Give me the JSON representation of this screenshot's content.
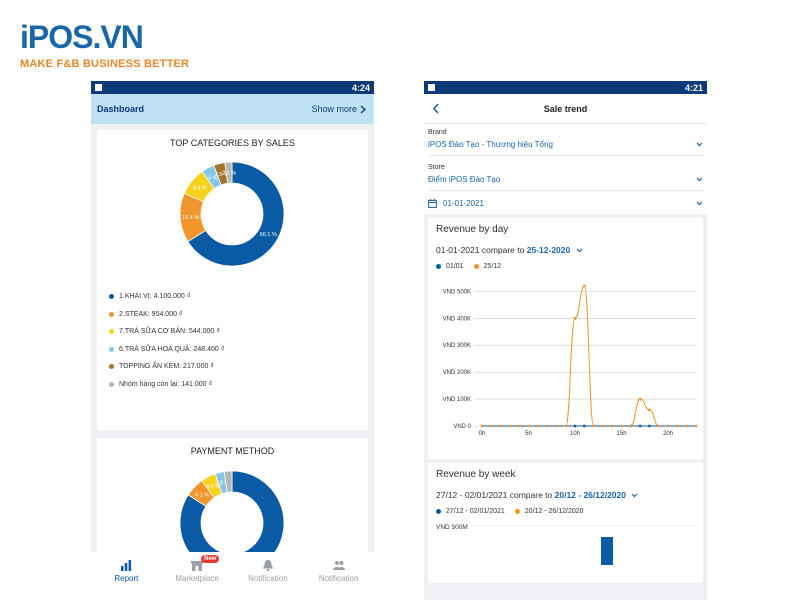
{
  "brand": {
    "logo": "iPOS.VN",
    "tagline": "MAKE F&B BUSINESS BETTER",
    "colors": {
      "primary": "#1967a8",
      "accent": "#e8862a"
    }
  },
  "left_phone": {
    "status_time": "4:24",
    "header": {
      "title": "Dashboard",
      "show_more": "Show more"
    },
    "top_categories": {
      "title": "TOP CATEGORIES BY SALES",
      "legend": [
        {
          "label": "1.KHAI VỊ: 4.100.000 ₫",
          "color": "#0a5aa6"
        },
        {
          "label": "2.STEAK: 954.000 ₫",
          "color": "#f0962c"
        },
        {
          "label": "7.TRÀ SỮA CƠ BẢN: 544.000 ₫",
          "color": "#f5d31c"
        },
        {
          "label": "6.TRÀ SỮA HOA QUẢ: 248.400 ₫",
          "color": "#86c6ec"
        },
        {
          "label": "TOPPING ĂN KÈM: 217.000 ₫",
          "color": "#a1762c"
        },
        {
          "label": "Nhóm hàng còn lại: 141.000 ₫",
          "color": "#b5b5b5"
        }
      ],
      "slices": [
        {
          "value": 66.1,
          "label": "66.1 %",
          "color": "#0a5aa6"
        },
        {
          "value": 15.4,
          "label": "15.4 %",
          "color": "#f0962c"
        },
        {
          "value": 8.8,
          "label": "8.8 %",
          "color": "#f5d31c"
        },
        {
          "value": 4.0,
          "label": "4 %",
          "color": "#86c6ec"
        },
        {
          "value": 3.5,
          "label": "3.5 %",
          "color": "#a1762c"
        },
        {
          "value": 2.2,
          "label": "2.2 %",
          "color": "#b5b5b5"
        }
      ]
    },
    "payment_method": {
      "title": "PAYMENT METHOD",
      "slices": [
        {
          "value": 84.1,
          "label": "84.1 %",
          "color": "#0a5aa6"
        },
        {
          "value": 6.1,
          "label": "6.1 %",
          "color": "#f0962c"
        },
        {
          "value": 4.6,
          "label": "4.6 %",
          "color": "#f5d31c"
        },
        {
          "value": 2.8,
          "label": "2.8 %",
          "color": "#86c6ec"
        },
        {
          "value": 2.4,
          "label": "",
          "color": "#b5b5b5"
        }
      ]
    },
    "nav": [
      {
        "label": "Report",
        "icon": "bar-chart-icon",
        "active": true
      },
      {
        "label": "Marketplace",
        "icon": "store-icon",
        "badge": "New"
      },
      {
        "label": "Notification",
        "icon": "bell-icon"
      },
      {
        "label": "Notification",
        "icon": "group-icon"
      }
    ]
  },
  "right_phone": {
    "status_time": "4:21",
    "title": "Sale trend",
    "filters": [
      {
        "label": "Brand",
        "value": "iPOS Đào Tạo - Thương hiệu  Tổng"
      },
      {
        "label": "Store",
        "value": "Điểm iPOS Đào Tạo"
      }
    ],
    "date_filter": "01-01-2021",
    "revenue_by_day": {
      "title": "Revenue by day",
      "compare_from": "01-01-2021 compare to",
      "compare_to": "25-12-2020",
      "legend": [
        {
          "name": "01/01",
          "color": "#0a5aa6"
        },
        {
          "name": "25/12",
          "color": "#f0962c"
        }
      ]
    },
    "revenue_by_week": {
      "title": "Revenue by week",
      "compare_from": "27/12 - 02/01/2021 compare to",
      "compare_to": "20/12 - 26/12/2020",
      "legend": [
        {
          "name": "27/12 - 02/01/2021",
          "color": "#0a5aa6"
        },
        {
          "name": "20/12 - 26/12/2020",
          "color": "#f0962c"
        }
      ],
      "y_tick_visible": "VND 500M"
    }
  },
  "chart_data": [
    {
      "type": "pie",
      "title": "TOP CATEGORIES BY SALES",
      "categories": [
        "1.KHAI VỊ",
        "2.STEAK",
        "7.TRÀ SỮA CƠ BẢN",
        "6.TRÀ SỮA HOA QUẢ",
        "TOPPING ĂN KÈM",
        "Nhóm hàng còn lại"
      ],
      "values": [
        66.1,
        15.4,
        8.8,
        4.0,
        3.5,
        2.2
      ]
    },
    {
      "type": "pie",
      "title": "PAYMENT METHOD",
      "values": [
        84.1,
        6.1,
        4.6,
        2.8,
        2.4
      ]
    },
    {
      "type": "line",
      "title": "Revenue by day",
      "x": [
        0,
        1,
        2,
        3,
        4,
        5,
        6,
        7,
        8,
        9,
        10,
        11,
        12,
        13,
        14,
        15,
        16,
        17,
        18,
        19,
        20,
        21,
        22,
        23
      ],
      "x_ticks": [
        "0h",
        "5h",
        "10h",
        "15h",
        "20h"
      ],
      "y_ticks": [
        "VND 0",
        "VND 100K",
        "VND 200K",
        "VND 300K",
        "VND 400K",
        "VND 500K"
      ],
      "ylim": [
        0,
        500000
      ],
      "series": [
        {
          "name": "01/01",
          "values": [
            0,
            0,
            0,
            0,
            0,
            0,
            0,
            0,
            0,
            0,
            0,
            0,
            0,
            0,
            0,
            0,
            0,
            0,
            0,
            0,
            0,
            0,
            0,
            0
          ]
        },
        {
          "name": "25/12",
          "values": [
            0,
            0,
            0,
            0,
            0,
            0,
            0,
            0,
            0,
            0,
            400000,
            520000,
            0,
            0,
            0,
            0,
            0,
            100000,
            60000,
            0,
            0,
            0,
            0,
            0
          ]
        }
      ]
    }
  ]
}
